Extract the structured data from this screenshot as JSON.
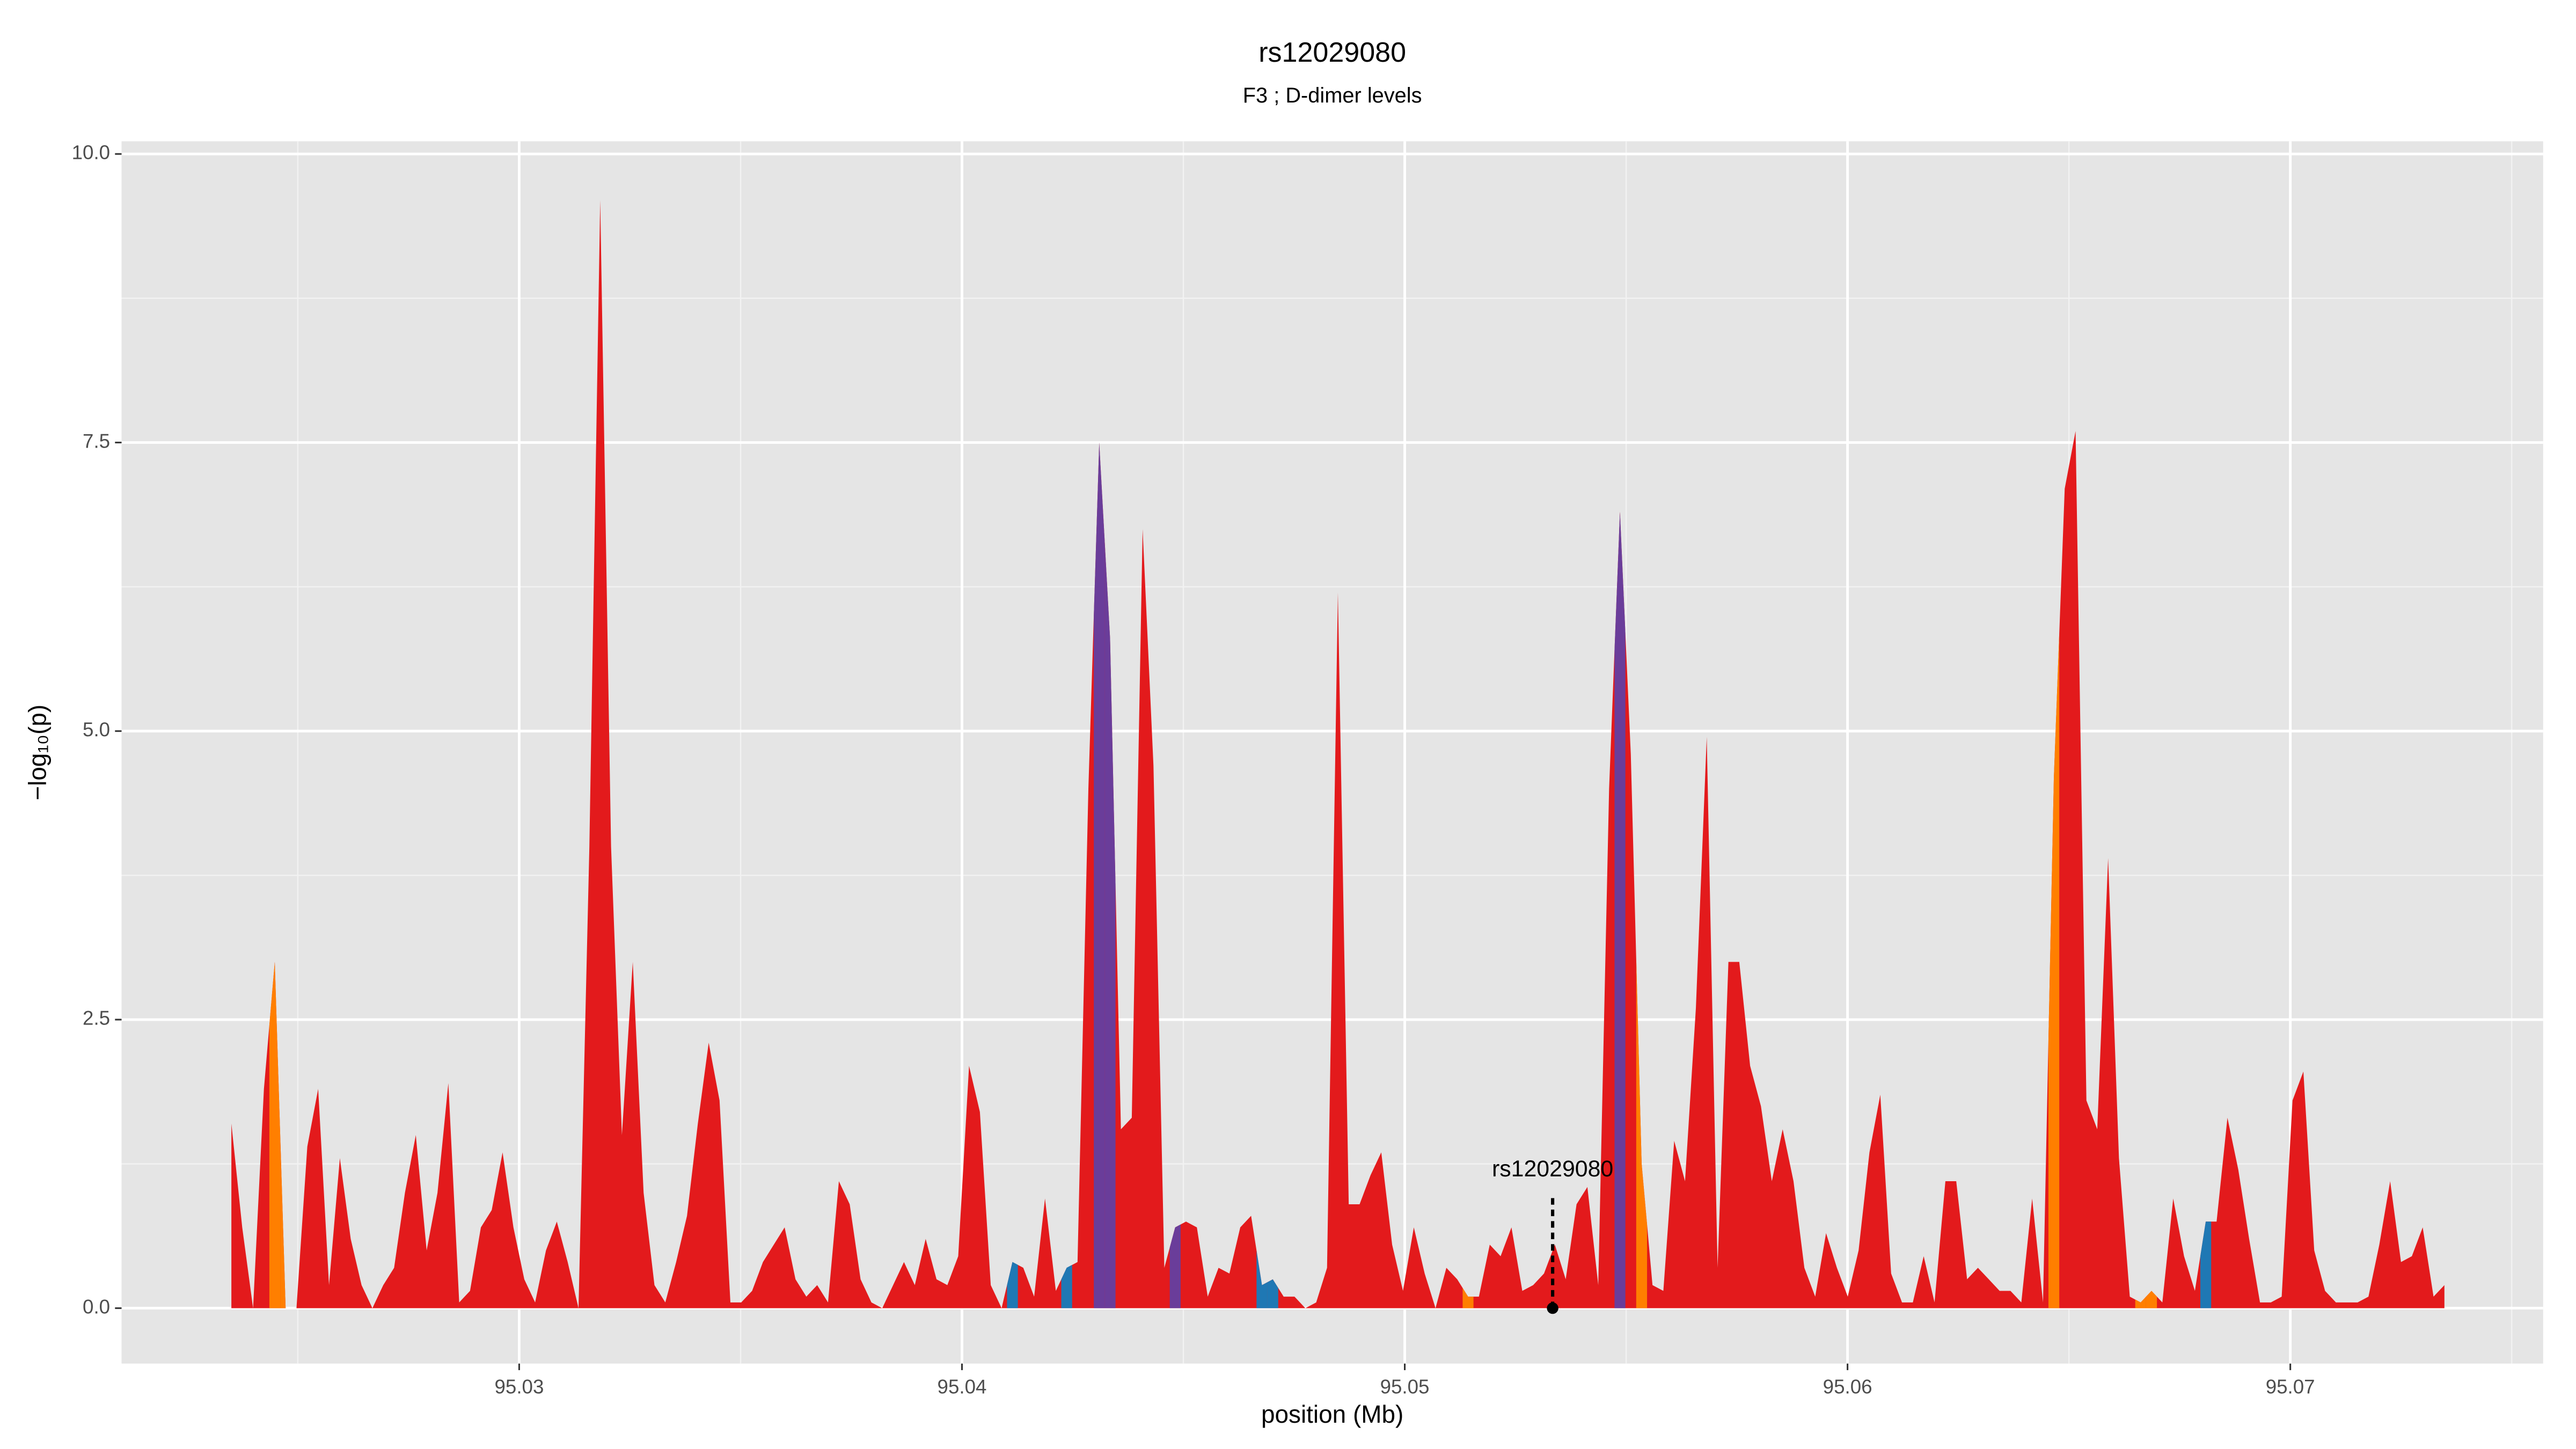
{
  "chart_data": {
    "type": "area",
    "title": "rs12029080",
    "subtitle": "F3 ; D-dimer levels",
    "x_label": "position (Mb)",
    "y_label": "−log₁₀(p)",
    "xlim": [
      95.02102,
      95.07571
    ],
    "ylim": [
      -0.48,
      10.11
    ],
    "xticks": [
      95.03,
      95.04,
      95.05,
      95.06,
      95.07
    ],
    "yticks": [
      {
        "value": 0,
        "label": "0.0"
      },
      2.5,
      {
        "value": 5,
        "label": "5.0"
      },
      7.5,
      {
        "value": 10,
        "label": "10.0"
      }
    ],
    "grid": true,
    "annotation": {
      "label": "rs12029080",
      "x": 95.05334,
      "y": 0
    },
    "x": [
      95.0235,
      95.023745,
      95.02399,
      95.024235,
      95.02448,
      95.024725,
      95.02497,
      95.025215,
      95.02546,
      95.025705,
      95.02595,
      95.026195,
      95.02644,
      95.026685,
      95.02693,
      95.027175,
      95.02742,
      95.027665,
      95.02791,
      95.028155,
      95.0284,
      95.028645,
      95.02889,
      95.029135,
      95.02938,
      95.029625,
      95.02987,
      95.030115,
      95.03036,
      95.030605,
      95.03085,
      95.031095,
      95.03134,
      95.031585,
      95.03183,
      95.032075,
      95.03232,
      95.032565,
      95.03281,
      95.033055,
      95.0333,
      95.033545,
      95.03379,
      95.034035,
      95.03428,
      95.034525,
      95.03477,
      95.035015,
      95.03526,
      95.035505,
      95.03575,
      95.035995,
      95.03624,
      95.036485,
      95.03673,
      95.036975,
      95.03722,
      95.037465,
      95.03771,
      95.037955,
      95.0382,
      95.038445,
      95.03869,
      95.038935,
      95.03918,
      95.039425,
      95.03967,
      95.039915,
      95.04016,
      95.040405,
      95.04065,
      95.040895,
      95.04114,
      95.041385,
      95.04163,
      95.041875,
      95.04212,
      95.042365,
      95.04261,
      95.042855,
      95.0431,
      95.043345,
      95.04359,
      95.043835,
      95.04408,
      95.044325,
      95.04457,
      95.044815,
      95.04506,
      95.045305,
      95.04555,
      95.045795,
      95.04604,
      95.046285,
      95.04653,
      95.046775,
      95.04702,
      95.047265,
      95.04751,
      95.047755,
      95.048,
      95.048245,
      95.04849,
      95.048735,
      95.04898,
      95.049225,
      95.04947,
      95.049715,
      95.04996,
      95.050205,
      95.05045,
      95.050695,
      95.05094,
      95.051185,
      95.05143,
      95.051675,
      95.05192,
      95.052165,
      95.05241,
      95.052655,
      95.0529,
      95.053145,
      95.05339,
      95.053635,
      95.05388,
      95.054125,
      95.05437,
      95.054615,
      95.05486,
      95.055105,
      95.05535,
      95.055595,
      95.05584,
      95.056085,
      95.05633,
      95.056575,
      95.05682,
      95.057065,
      95.05731,
      95.057555,
      95.0578,
      95.058045,
      95.05829,
      95.058535,
      95.05878,
      95.059025,
      95.05927,
      95.059515,
      95.05976,
      95.060005,
      95.06025,
      95.060495,
      95.06074,
      95.060985,
      95.06123,
      95.061475,
      95.06172,
      95.061965,
      95.06221,
      95.062455,
      95.0627,
      95.062945,
      95.06319,
      95.063435,
      95.06368,
      95.063925,
      95.06417,
      95.064415,
      95.06466,
      95.064905,
      95.06515,
      95.065395,
      95.06564,
      95.065885,
      95.06613,
      95.066375,
      95.06662,
      95.066865,
      95.06711,
      95.067355,
      95.0676,
      95.067845,
      95.06809,
      95.068335,
      95.06858,
      95.068825,
      95.06907,
      95.069315,
      95.06956,
      95.069805,
      95.07005,
      95.070295,
      95.07054,
      95.070785,
      95.07103,
      95.071275,
      95.07152,
      95.071765,
      95.07201,
      95.072255,
      95.0725,
      95.072745,
      95.07299,
      95.073235,
      95.07348
    ],
    "values": [
      1.6,
      0.7,
      0,
      1.9,
      3.0,
      0,
      0,
      1.4,
      1.9,
      0.2,
      1.3,
      0.6,
      0.2,
      0,
      0.2,
      0.35,
      1.0,
      1.5,
      0.5,
      1.0,
      1.95,
      0.05,
      0.15,
      0.7,
      0.85,
      1.35,
      0.7,
      0.25,
      0.05,
      0.5,
      0.75,
      0.4,
      0,
      4.0,
      9.6,
      4.0,
      1.5,
      3.0,
      1.0,
      0.2,
      0.05,
      0.4,
      0.8,
      1.6,
      2.3,
      1.8,
      0.05,
      0.05,
      0.15,
      0.4,
      0.55,
      0.7,
      0.25,
      0.1,
      0.2,
      0.05,
      1.1,
      0.9,
      0.25,
      0.05,
      0,
      0.2,
      0.4,
      0.2,
      0.6,
      0.25,
      0.2,
      0.45,
      2.1,
      1.7,
      0.2,
      0,
      0.4,
      0.35,
      0.1,
      0.95,
      0.15,
      0.35,
      0.4,
      4.5,
      7.5,
      5.8,
      1.55,
      1.65,
      6.75,
      4.7,
      0.35,
      0.7,
      0.75,
      0.7,
      0.1,
      0.35,
      0.3,
      0.7,
      0.8,
      0.2,
      0.25,
      0.1,
      0.1,
      0,
      0.05,
      0.35,
      6.2,
      0.9,
      0.9,
      1.15,
      1.35,
      0.55,
      0.15,
      0.7,
      0.3,
      0,
      0.35,
      0.25,
      0.1,
      0.1,
      0.55,
      0.45,
      0.7,
      0.15,
      0.2,
      0.3,
      0.55,
      0.25,
      0.9,
      1.05,
      0.2,
      4.5,
      6.9,
      4.8,
      1.25,
      0.2,
      0.15,
      1.45,
      1.1,
      2.6,
      4.95,
      0.35,
      3.0,
      3.0,
      2.1,
      1.75,
      1.1,
      1.55,
      1.1,
      0.35,
      0.1,
      0.65,
      0.35,
      0.1,
      0.5,
      1.35,
      1.85,
      0.3,
      0.05,
      0.05,
      0.45,
      0.05,
      1.1,
      1.1,
      0.25,
      0.35,
      0.25,
      0.15,
      0.15,
      0.05,
      0.95,
      0.05,
      4.6,
      7.1,
      7.6,
      1.8,
      1.55,
      3.9,
      1.3,
      0.1,
      0.05,
      0.15,
      0.05,
      0.95,
      0.45,
      0.15,
      0.75,
      0.75,
      1.65,
      1.2,
      0.6,
      0.05,
      0.05,
      0.1,
      1.8,
      2.05,
      0.5,
      0.15,
      0.05,
      0.05,
      0.05,
      0.1,
      0.55,
      1.1,
      0.4,
      0.45,
      0.7,
      0.1,
      0.2
    ],
    "color": "#e31a1c",
    "point_colors": [
      "#e31a1c",
      "#e31a1c",
      "#e31a1c",
      "#e31a1c",
      "#ff7f00",
      "#ff7f00",
      "#e31a1c",
      "#e31a1c",
      "#e31a1c",
      "#e31a1c",
      "#e31a1c",
      "#e31a1c",
      "#e31a1c",
      "#e31a1c",
      "#e31a1c",
      "#e31a1c",
      "#e31a1c",
      "#e31a1c",
      "#e31a1c",
      "#e31a1c",
      "#e31a1c",
      "#e31a1c",
      "#e31a1c",
      "#e31a1c",
      "#e31a1c",
      "#e31a1c",
      "#e31a1c",
      "#e31a1c",
      "#e31a1c",
      "#e31a1c",
      "#e31a1c",
      "#e31a1c",
      "#e31a1c",
      "#e31a1c",
      "#e31a1c",
      "#e31a1c",
      "#e31a1c",
      "#e31a1c",
      "#e31a1c",
      "#e31a1c",
      "#e31a1c",
      "#e31a1c",
      "#e31a1c",
      "#e31a1c",
      "#e31a1c",
      "#e31a1c",
      "#e31a1c",
      "#e31a1c",
      "#e31a1c",
      "#e31a1c",
      "#e31a1c",
      "#e31a1c",
      "#e31a1c",
      "#e31a1c",
      "#e31a1c",
      "#e31a1c",
      "#e31a1c",
      "#e31a1c",
      "#e31a1c",
      "#e31a1c",
      "#e31a1c",
      "#e31a1c",
      "#e31a1c",
      "#e31a1c",
      "#e31a1c",
      "#e31a1c",
      "#e31a1c",
      "#e31a1c",
      "#e31a1c",
      "#e31a1c",
      "#e31a1c",
      "#e31a1c",
      "#1f78b4",
      "#e31a1c",
      "#e31a1c",
      "#e31a1c",
      "#e31a1c",
      "#1f78b4",
      "#e31a1c",
      "#e31a1c",
      "#6a3d9a",
      "#6a3d9a",
      "#e31a1c",
      "#e31a1c",
      "#e31a1c",
      "#e31a1c",
      "#e31a1c",
      "#6a3d9a",
      "#e31a1c",
      "#e31a1c",
      "#e31a1c",
      "#e31a1c",
      "#e31a1c",
      "#e31a1c",
      "#e31a1c",
      "#1f78b4",
      "#1f78b4",
      "#e31a1c",
      "#e31a1c",
      "#e31a1c",
      "#e31a1c",
      "#e31a1c",
      "#e31a1c",
      "#e31a1c",
      "#e31a1c",
      "#e31a1c",
      "#e31a1c",
      "#e31a1c",
      "#e31a1c",
      "#e31a1c",
      "#e31a1c",
      "#e31a1c",
      "#e31a1c",
      "#e31a1c",
      "#ff7f00",
      "#e31a1c",
      "#e31a1c",
      "#e31a1c",
      "#e31a1c",
      "#e31a1c",
      "#e31a1c",
      "#e31a1c",
      "#e31a1c",
      "#e31a1c",
      "#e31a1c",
      "#e31a1c",
      "#e31a1c",
      "#e31a1c",
      "#6a3d9a",
      "#e31a1c",
      "#ff7f00",
      "#e31a1c",
      "#e31a1c",
      "#e31a1c",
      "#e31a1c",
      "#e31a1c",
      "#e31a1c",
      "#e31a1c",
      "#e31a1c",
      "#e31a1c",
      "#e31a1c",
      "#e31a1c",
      "#e31a1c",
      "#e31a1c",
      "#e31a1c",
      "#e31a1c",
      "#e31a1c",
      "#e31a1c",
      "#e31a1c",
      "#e31a1c",
      "#e31a1c",
      "#e31a1c",
      "#e31a1c",
      "#e31a1c",
      "#e31a1c",
      "#e31a1c",
      "#e31a1c",
      "#e31a1c",
      "#e31a1c",
      "#e31a1c",
      "#e31a1c",
      "#e31a1c",
      "#e31a1c",
      "#e31a1c",
      "#e31a1c",
      "#e31a1c",
      "#e31a1c",
      "#e31a1c",
      "#ff7f00",
      "#e31a1c",
      "#e31a1c",
      "#e31a1c",
      "#e31a1c",
      "#e31a1c",
      "#e31a1c",
      "#e31a1c",
      "#ff7f00",
      "#ff7f00",
      "#e31a1c",
      "#e31a1c",
      "#e31a1c",
      "#e31a1c",
      "#1f78b4",
      "#e31a1c",
      "#e31a1c",
      "#e31a1c",
      "#e31a1c",
      "#e31a1c",
      "#e31a1c",
      "#e31a1c",
      "#e31a1c",
      "#e31a1c",
      "#e31a1c",
      "#e31a1c",
      "#e31a1c",
      "#e31a1c",
      "#e31a1c",
      "#e31a1c",
      "#e31a1c",
      "#e31a1c",
      "#e31a1c",
      "#e31a1c",
      "#e31a1c",
      "#e31a1c",
      "#e31a1c",
      "#e31a1c",
      "#e31a1c",
      "#e31a1c"
    ]
  }
}
